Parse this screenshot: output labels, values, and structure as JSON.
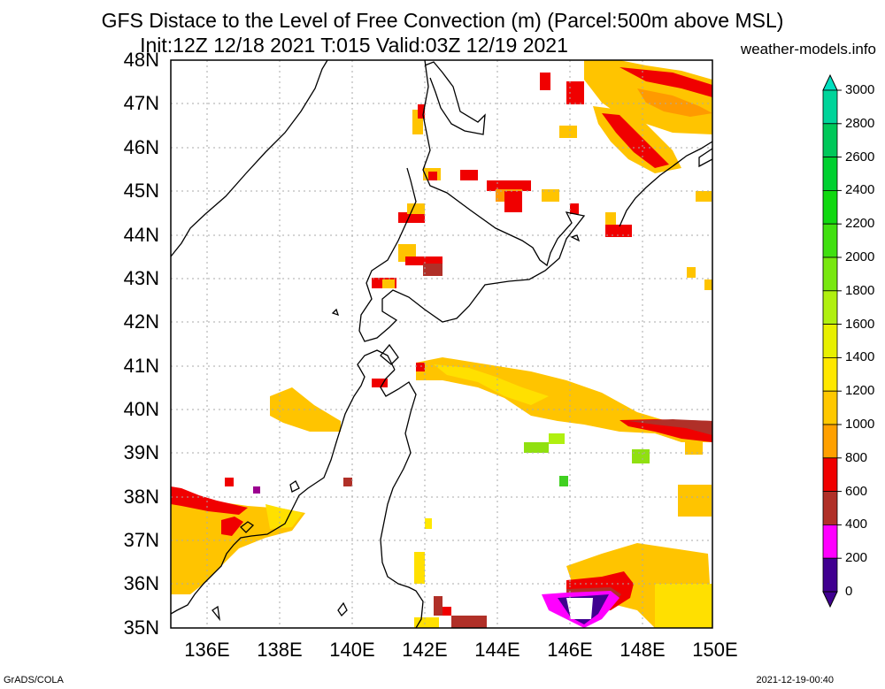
{
  "header": {
    "title_line1": "GFS Distace to the Level of Free Convection (m) (Parcel:500m above MSL)",
    "title_line2": "Init:12Z 12/18 2021 T:015 Valid:03Z 12/19 2021",
    "site": "weather-models.info"
  },
  "axes": {
    "lat_labels": [
      "48N",
      "47N",
      "46N",
      "45N",
      "44N",
      "43N",
      "42N",
      "41N",
      "40N",
      "39N",
      "38N",
      "37N",
      "36N",
      "35N"
    ],
    "lon_labels": [
      "136E",
      "138E",
      "140E",
      "142E",
      "144E",
      "146E",
      "148E",
      "150E"
    ]
  },
  "colorbar": {
    "labels": [
      "3000",
      "2800",
      "2600",
      "2400",
      "2200",
      "2000",
      "1800",
      "1600",
      "1400",
      "1200",
      "1000",
      "800",
      "600",
      "400",
      "200",
      "0"
    ],
    "colors": [
      "#00e0c0",
      "#00d49a",
      "#00c85a",
      "#00d030",
      "#10d810",
      "#40e010",
      "#78e810",
      "#b0f010",
      "#e8f000",
      "#ffe800",
      "#ffc800",
      "#ffa000",
      "#f00000",
      "#b03028",
      "#ff00ff",
      "#400090"
    ]
  },
  "footer": {
    "left": "GrADS/COLA",
    "right": "2021-12-19-00:40"
  }
}
